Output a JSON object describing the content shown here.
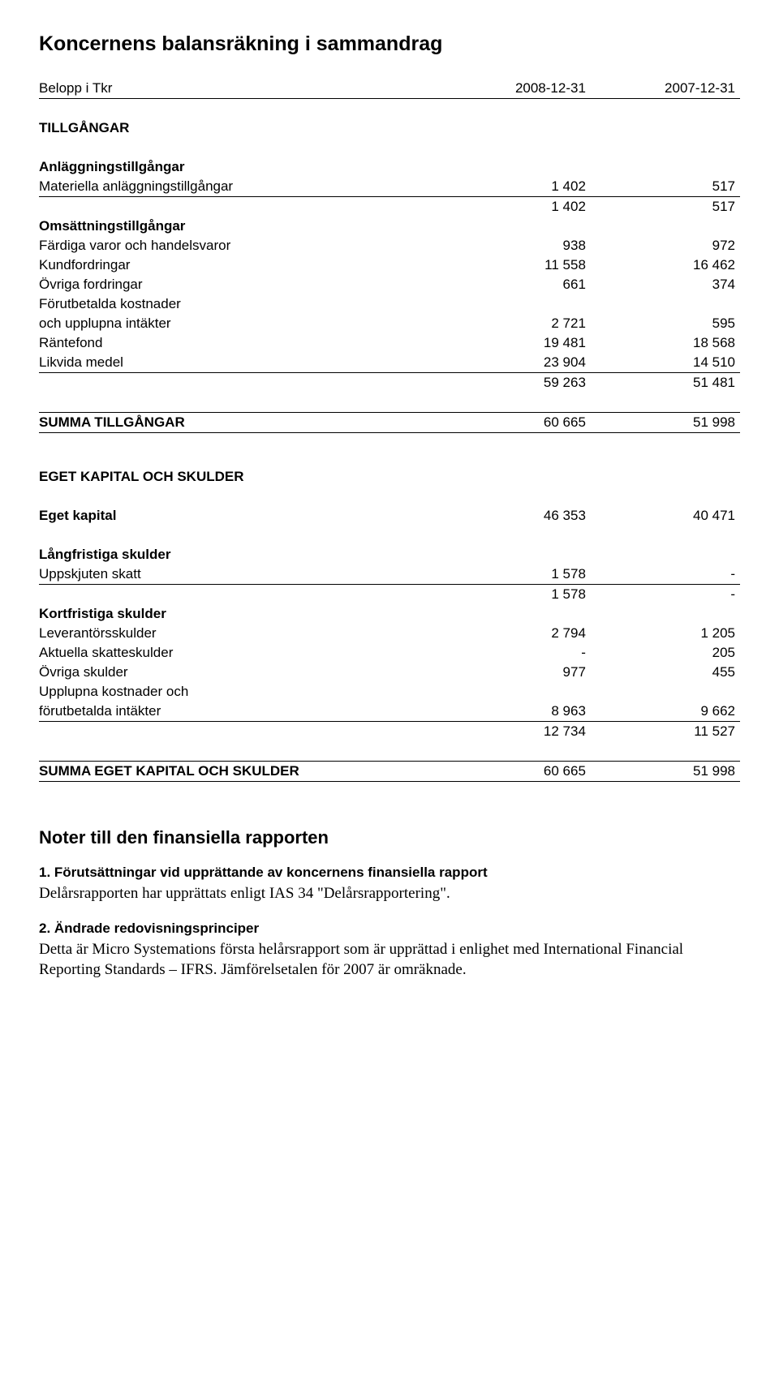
{
  "title": "Koncernens balansräkning i sammandrag",
  "header": {
    "label": "Belopp i Tkr",
    "col_a": "2008-12-31",
    "col_b": "2007-12-31"
  },
  "assets_heading": "TILLGÅNGAR",
  "fixed_assets": {
    "heading": "Anläggningstillgångar",
    "rows": [
      {
        "label": "Materiella anläggningstillgångar",
        "a": "1 402",
        "b": "517"
      }
    ],
    "subtotal": {
      "a": "1 402",
      "b": "517"
    }
  },
  "current_assets": {
    "heading": "Omsättningstillgångar",
    "rows": [
      {
        "label": "Färdiga varor och handelsvaror",
        "a": "938",
        "b": "972"
      },
      {
        "label": "Kundfordringar",
        "a": "11 558",
        "b": "16 462"
      },
      {
        "label": "Övriga fordringar",
        "a": "661",
        "b": "374"
      },
      {
        "label_1": "Förutbetalda kostnader",
        "label_2": "och upplupna intäkter",
        "a": "2 721",
        "b": "595"
      },
      {
        "label": "Räntefond",
        "a": "19 481",
        "b": "18 568"
      },
      {
        "label": "Likvida medel",
        "a": "23 904",
        "b": "14 510"
      }
    ],
    "subtotal": {
      "a": "59 263",
      "b": "51 481"
    }
  },
  "total_assets": {
    "label": "SUMMA TILLGÅNGAR",
    "a": "60 665",
    "b": "51 998"
  },
  "equity_liab_heading": "EGET KAPITAL OCH SKULDER",
  "equity": {
    "label": "Eget kapital",
    "a": "46 353",
    "b": "40 471"
  },
  "long_liab": {
    "heading": "Långfristiga skulder",
    "rows": [
      {
        "label": "Uppskjuten skatt",
        "a": "1 578",
        "b": "-"
      }
    ],
    "subtotal": {
      "a": "1 578",
      "b": "-"
    }
  },
  "short_liab": {
    "heading": "Kortfristiga skulder",
    "rows": [
      {
        "label": "Leverantörsskulder",
        "a": "2 794",
        "b": "1 205"
      },
      {
        "label": "Aktuella skatteskulder",
        "a": "-",
        "b": "205"
      },
      {
        "label": "Övriga skulder",
        "a": "977",
        "b": "455"
      },
      {
        "label_1": "Upplupna kostnader och",
        "label_2": "förutbetalda intäkter",
        "a": "8 963",
        "b": "9 662"
      }
    ],
    "subtotal": {
      "a": "12 734",
      "b": "11 527"
    }
  },
  "total_eq_liab": {
    "label": "SUMMA EGET KAPITAL OCH SKULDER",
    "a": "60 665",
    "b": "51 998"
  },
  "notes": {
    "heading": "Noter till den finansiella rapporten",
    "n1_title": "1. Förutsättningar vid upprättande av koncernens finansiella rapport",
    "n1_body": "Delårsrapporten har upprättats enligt IAS 34 \"Delårsrapportering\".",
    "n2_title": "2. Ändrade redovisningsprinciper",
    "n2_body": "Detta är Micro Systemations första helårsrapport som är upprättad i enlighet med International Financial Reporting Standards – IFRS. Jämförelsetalen för 2007 är omräknade."
  }
}
